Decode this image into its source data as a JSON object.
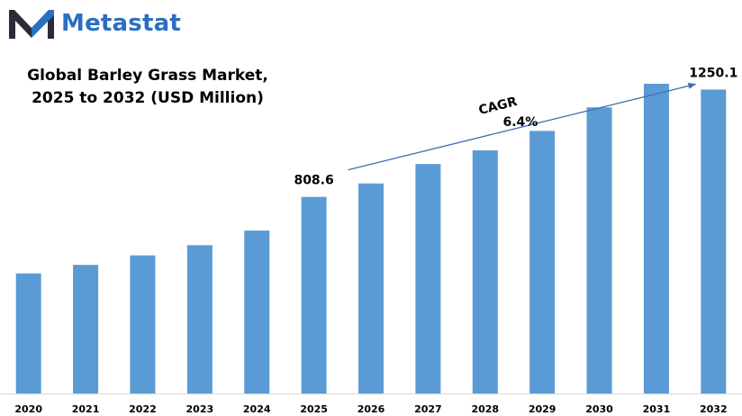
{
  "brand": {
    "name": "Metastat",
    "logo_icon": "metastat-m-logo-icon",
    "color": "#2a6fc1"
  },
  "chart_data": {
    "type": "bar",
    "title_lines": [
      "Global Barley Grass Market,",
      "2025 to 2032 (USD Million)"
    ],
    "categories": [
      "2020",
      "2021",
      "2022",
      "2023",
      "2024",
      "2025",
      "2026",
      "2027",
      "2028",
      "2029",
      "2030",
      "2031",
      "2032"
    ],
    "values": [
      494,
      529,
      568,
      610,
      670,
      808.6,
      864,
      944,
      1000,
      1080,
      1177,
      1274,
      1250.1
    ],
    "data_labels": [
      {
        "category": "2025",
        "text": "808.6"
      },
      {
        "category": "2032",
        "text": "1250.1"
      }
    ],
    "annotation": {
      "label": "CAGR",
      "value": "6.4%",
      "from": "2025",
      "to": "2032"
    },
    "bar_color": "#5b9bd5",
    "arrow_color": "#3f6fb0",
    "xlabel": "",
    "ylabel": "",
    "ylim": [
      0,
      1300
    ],
    "grid": false,
    "legend": "none"
  }
}
